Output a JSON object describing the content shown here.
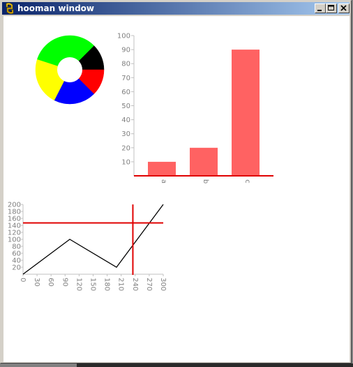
{
  "window": {
    "title": "hooman window",
    "buttons": [
      "minimize",
      "maximize",
      "close"
    ],
    "icon": "python-icon"
  },
  "colors": {
    "bar": "#ff6262",
    "red": "#ff0000",
    "axis": "#c0c0c0",
    "line": "#000000",
    "donut": [
      "#000000",
      "#ff0000",
      "#0000ff",
      "#ffff00",
      "#00ff00"
    ]
  },
  "chart_data": [
    {
      "type": "pie",
      "style": "donut",
      "slices": [
        {
          "color": "#000000",
          "value": 12.5
        },
        {
          "color": "#ff0000",
          "value": 12.5
        },
        {
          "color": "#0000ff",
          "value": 20.0
        },
        {
          "color": "#ffff00",
          "value": 22.5
        },
        {
          "color": "#00ff00",
          "value": 32.5
        }
      ]
    },
    {
      "type": "bar",
      "categories": [
        "a",
        "b",
        "c"
      ],
      "values": [
        10,
        20,
        90
      ],
      "ylim": [
        0,
        100
      ],
      "yticks": [
        "10",
        "20",
        "30",
        "40",
        "50",
        "60",
        "70",
        "80",
        "90",
        "100"
      ],
      "title": "",
      "xlabel": "",
      "ylabel": ""
    },
    {
      "type": "line",
      "x": [
        0,
        100,
        200,
        300
      ],
      "y": [
        0,
        100,
        20,
        200
      ],
      "xlim": [
        0,
        300
      ],
      "ylim": [
        0,
        200
      ],
      "xticks": [
        "0",
        "30",
        "60",
        "90",
        "120",
        "150",
        "180",
        "210",
        "240",
        "270",
        "300"
      ],
      "yticks": [
        "20",
        "40",
        "60",
        "80",
        "100",
        "120",
        "140",
        "160",
        "180",
        "200"
      ],
      "crosshair": {
        "x": 235,
        "y": 147
      },
      "title": "",
      "xlabel": "",
      "ylabel": ""
    }
  ]
}
